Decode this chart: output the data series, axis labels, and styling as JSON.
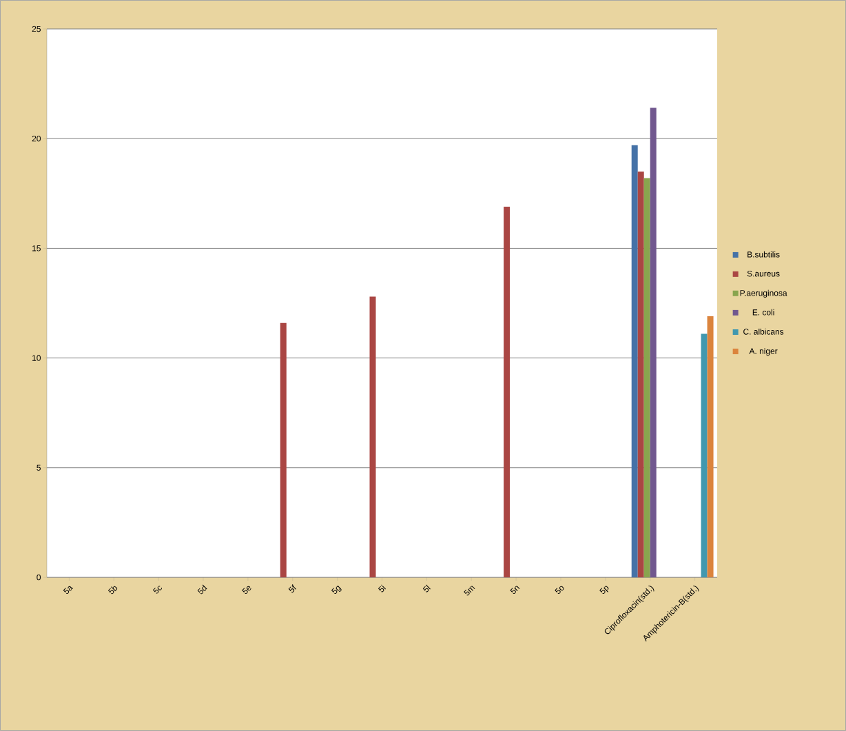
{
  "chart_data": {
    "type": "bar",
    "categories": [
      "5a",
      "5b",
      "5c",
      "5d",
      "5e",
      "5f",
      "5g",
      "5i",
      "5l",
      "5m",
      "5n",
      "5o",
      "5p",
      "Ciprofloxacin(std.)",
      "Amphotericin-B(std.)"
    ],
    "series": [
      {
        "name": "B.subtilis",
        "color": "#4572a7",
        "values": [
          null,
          null,
          null,
          null,
          null,
          null,
          null,
          null,
          null,
          null,
          null,
          null,
          null,
          19.7,
          null
        ]
      },
      {
        "name": "S.aureus",
        "color": "#aa4643",
        "values": [
          null,
          null,
          null,
          null,
          null,
          11.6,
          null,
          12.8,
          null,
          null,
          16.9,
          null,
          null,
          18.5,
          null
        ]
      },
      {
        "name": "P.aeruginosa",
        "color": "#89a54e",
        "values": [
          null,
          null,
          null,
          null,
          null,
          null,
          null,
          null,
          null,
          null,
          null,
          null,
          null,
          18.2,
          null
        ]
      },
      {
        "name": "E. coli",
        "color": "#71588f",
        "values": [
          null,
          null,
          null,
          null,
          null,
          null,
          null,
          null,
          null,
          null,
          null,
          null,
          null,
          21.4,
          null
        ]
      },
      {
        "name": "C. albicans",
        "color": "#4198af",
        "values": [
          null,
          null,
          null,
          null,
          null,
          null,
          null,
          null,
          null,
          null,
          null,
          null,
          null,
          null,
          11.1
        ]
      },
      {
        "name": "A. niger",
        "color": "#db843d",
        "values": [
          null,
          null,
          null,
          null,
          null,
          null,
          null,
          null,
          null,
          null,
          null,
          null,
          null,
          null,
          11.9
        ]
      }
    ],
    "ylim": [
      0,
      25
    ],
    "yticks": [
      0,
      5,
      10,
      15,
      20,
      25
    ],
    "grid": "y",
    "legend": "right"
  }
}
